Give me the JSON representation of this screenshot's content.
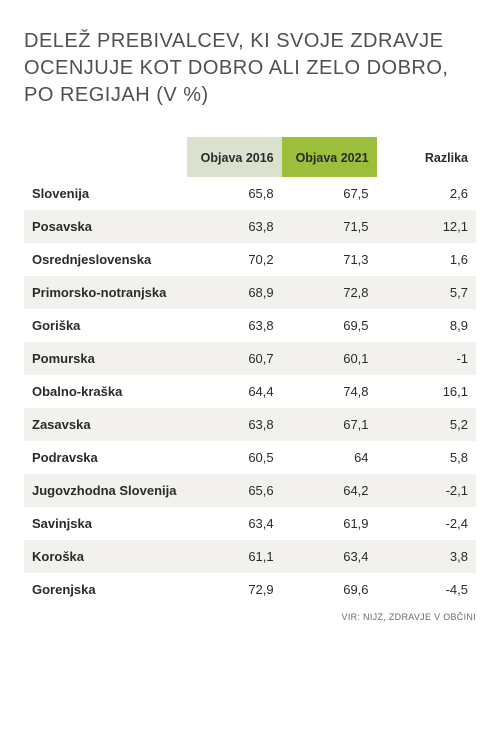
{
  "title": "DELEŽ PREBIVALCEV, KI SVOJE ZDRAVJE OCENJUJE KOT DOBRO ALI ZELO DOBRO, PO REGIJAH (V %)",
  "table": {
    "type": "table",
    "columns": [
      "",
      "Objava 2016",
      "Objava 2021",
      "Razlika"
    ],
    "header_bg_colors": [
      "#ffffff",
      "#dbe1cf",
      "#9cbf3b",
      "#ffffff"
    ],
    "row_alt_bg": "#f2f1ed",
    "row_bg": "#ffffff",
    "text_color": "#2b2b2b",
    "font_size_header": 12.5,
    "font_size_body": 13,
    "col_align": [
      "left",
      "right",
      "right",
      "right"
    ],
    "col_widths_pct": [
      36,
      21,
      21,
      22
    ],
    "rows": [
      [
        "Slovenija",
        "65,8",
        "67,5",
        "2,6"
      ],
      [
        "Posavska",
        "63,8",
        "71,5",
        "12,1"
      ],
      [
        "Osrednjeslovenska",
        "70,2",
        "71,3",
        "1,6"
      ],
      [
        "Primorsko-notranjska",
        "68,9",
        "72,8",
        "5,7"
      ],
      [
        "Goriška",
        "63,8",
        "69,5",
        "8,9"
      ],
      [
        "Pomurska",
        "60,7",
        "60,1",
        "-1"
      ],
      [
        "Obalno-kraška",
        "64,4",
        "74,8",
        "16,1"
      ],
      [
        "Zasavska",
        "63,8",
        "67,1",
        "5,2"
      ],
      [
        "Podravska",
        "60,5",
        "64",
        "5,8"
      ],
      [
        "Jugovzhodna Slovenija",
        "65,6",
        "64,2",
        "-2,1"
      ],
      [
        "Savinjska",
        "63,4",
        "61,9",
        "-2,4"
      ],
      [
        "Koroška",
        "61,1",
        "63,4",
        "3,8"
      ],
      [
        "Gorenjska",
        "72,9",
        "69,6",
        "-4,5"
      ]
    ]
  },
  "source": "VIR: NIJZ, ZDRAVJE V OBČINI"
}
